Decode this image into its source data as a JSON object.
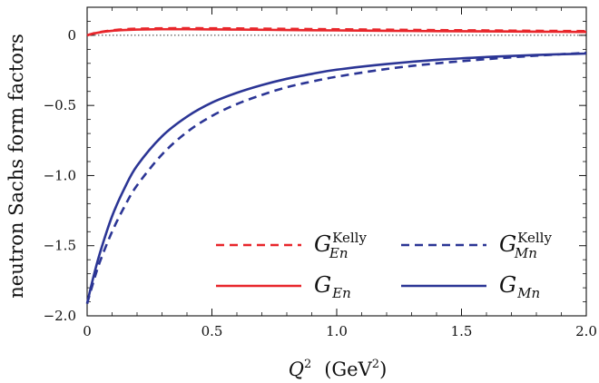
{
  "chart_data": {
    "type": "line",
    "title": "",
    "xlabel_main": "Q",
    "xlabel_sup": "2",
    "xlabel_units": "(GeV",
    "xlabel_units_sup": "2",
    "xlabel_units_close": ")",
    "ylabel": "neutron Sachs form factors",
    "xlim": [
      0,
      2.0
    ],
    "ylim": [
      -2.0,
      0.2
    ],
    "xticks": [
      0,
      0.5,
      1.0,
      1.5,
      2.0
    ],
    "xtick_labels": [
      "0",
      "0.5",
      "1.0",
      "1.5",
      "2.0"
    ],
    "yticks": [
      0,
      -0.5,
      -1.0,
      -1.5,
      -2.0
    ],
    "ytick_labels": [
      "0",
      "−0.5",
      "−1.0",
      "−1.5",
      "−2.0"
    ],
    "grid": false,
    "legend_placement": "bottom-right",
    "series": [
      {
        "key": "GEn_kelly",
        "label_base": "G",
        "label_sub": "En",
        "label_sup": "Kelly",
        "color": "#e8262b",
        "dash": "dashed",
        "x": [
          0,
          0.02,
          0.05,
          0.1,
          0.15,
          0.2,
          0.3,
          0.4,
          0.5,
          0.6,
          0.8,
          1.0,
          1.2,
          1.4,
          1.6,
          1.8,
          2.0
        ],
        "y": [
          0,
          0.011,
          0.023,
          0.036,
          0.043,
          0.047,
          0.05,
          0.051,
          0.05,
          0.049,
          0.046,
          0.043,
          0.04,
          0.037,
          0.035,
          0.032,
          0.03
        ]
      },
      {
        "key": "GEn",
        "label_base": "G",
        "label_sub": "En",
        "label_sup": "",
        "color": "#e8262b",
        "dash": "solid",
        "x": [
          0,
          0.02,
          0.05,
          0.1,
          0.15,
          0.2,
          0.3,
          0.4,
          0.5,
          0.6,
          0.8,
          1.0,
          1.2,
          1.4,
          1.6,
          1.8,
          2.0
        ],
        "y": [
          0,
          0.01,
          0.021,
          0.032,
          0.038,
          0.041,
          0.043,
          0.043,
          0.042,
          0.041,
          0.038,
          0.035,
          0.032,
          0.03,
          0.028,
          0.026,
          0.024
        ]
      },
      {
        "key": "GMn_kelly",
        "label_base": "G",
        "label_sub": "Mn",
        "label_sup": "Kelly",
        "color": "#2b3595",
        "dash": "dashed",
        "x": [
          0,
          0.02,
          0.05,
          0.1,
          0.15,
          0.2,
          0.3,
          0.4,
          0.5,
          0.6,
          0.7,
          0.8,
          0.9,
          1.0,
          1.2,
          1.4,
          1.6,
          1.8,
          2.0
        ],
        "y": [
          -1.913,
          -1.79,
          -1.62,
          -1.4,
          -1.22,
          -1.07,
          -0.85,
          -0.69,
          -0.575,
          -0.49,
          -0.425,
          -0.37,
          -0.33,
          -0.295,
          -0.24,
          -0.2,
          -0.17,
          -0.145,
          -0.125
        ]
      },
      {
        "key": "GMn",
        "label_base": "G",
        "label_sub": "Mn",
        "label_sup": "",
        "color": "#2b3595",
        "dash": "solid",
        "x": [
          0,
          0.02,
          0.05,
          0.1,
          0.15,
          0.2,
          0.3,
          0.4,
          0.5,
          0.6,
          0.7,
          0.8,
          0.9,
          1.0,
          1.2,
          1.4,
          1.6,
          1.8,
          2.0
        ],
        "y": [
          -1.913,
          -1.76,
          -1.56,
          -1.29,
          -1.09,
          -0.93,
          -0.72,
          -0.58,
          -0.48,
          -0.41,
          -0.355,
          -0.31,
          -0.275,
          -0.245,
          -0.205,
          -0.175,
          -0.155,
          -0.14,
          -0.13
        ]
      }
    ]
  }
}
